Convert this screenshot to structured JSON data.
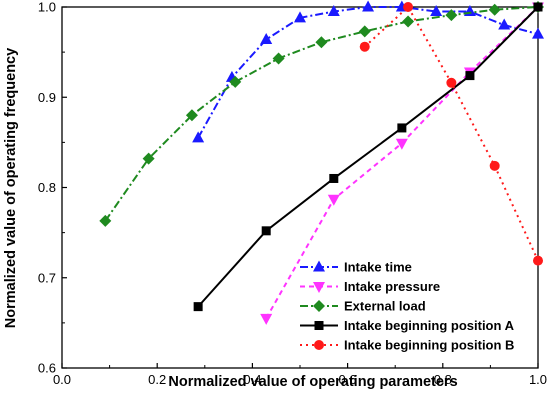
{
  "chart_data": {
    "type": "line",
    "xlabel": "Normalized value of operating parameters",
    "ylabel": "Normalized value of operating frequency",
    "xlim": [
      0.0,
      1.0
    ],
    "ylim": [
      0.6,
      1.0
    ],
    "xticks": [
      "0.0",
      "0.2",
      "0.4",
      "0.6",
      "0.8",
      "1.0"
    ],
    "yticks": [
      "0.6",
      "0.7",
      "0.8",
      "0.9",
      "1.0"
    ],
    "grid": false,
    "legend_position": "bottom-right",
    "series": [
      {
        "name": "Intake time",
        "color": "#1a1aff",
        "line_style": "dash-dot",
        "marker": "triangle-up",
        "x": [
          0.286,
          0.357,
          0.429,
          0.5,
          0.571,
          0.643,
          0.714,
          0.786,
          0.857,
          0.929,
          1.0
        ],
        "y": [
          0.855,
          0.922,
          0.964,
          0.988,
          0.995,
          1.0,
          1.0,
          0.995,
          0.995,
          0.98,
          0.97
        ]
      },
      {
        "name": "Intake pressure",
        "color": "#ff33ff",
        "line_style": "dashed",
        "marker": "triangle-down",
        "x": [
          0.429,
          0.571,
          0.714,
          0.857,
          1.0
        ],
        "y": [
          0.655,
          0.787,
          0.849,
          0.928,
          1.0
        ]
      },
      {
        "name": "External load",
        "color": "#1f8a1f",
        "line_style": "dash-dot",
        "marker": "diamond",
        "x": [
          0.091,
          0.182,
          0.273,
          0.364,
          0.455,
          0.545,
          0.636,
          0.727,
          0.818,
          0.909,
          1.0
        ],
        "y": [
          0.763,
          0.832,
          0.88,
          0.917,
          0.943,
          0.961,
          0.973,
          0.984,
          0.991,
          0.997,
          1.0
        ]
      },
      {
        "name": "Intake beginning position A",
        "color": "#000000",
        "line_style": "solid",
        "marker": "square",
        "x": [
          0.286,
          0.429,
          0.571,
          0.714,
          0.857,
          1.0
        ],
        "y": [
          0.668,
          0.752,
          0.81,
          0.866,
          0.924,
          1.0
        ]
      },
      {
        "name": "Intake beginning position B",
        "color": "#ff1a1a",
        "line_style": "dotted",
        "marker": "circle",
        "x": [
          0.636,
          0.727,
          0.818,
          0.909,
          1.0
        ],
        "y": [
          0.956,
          1.0,
          0.916,
          0.824,
          0.719
        ]
      }
    ]
  }
}
